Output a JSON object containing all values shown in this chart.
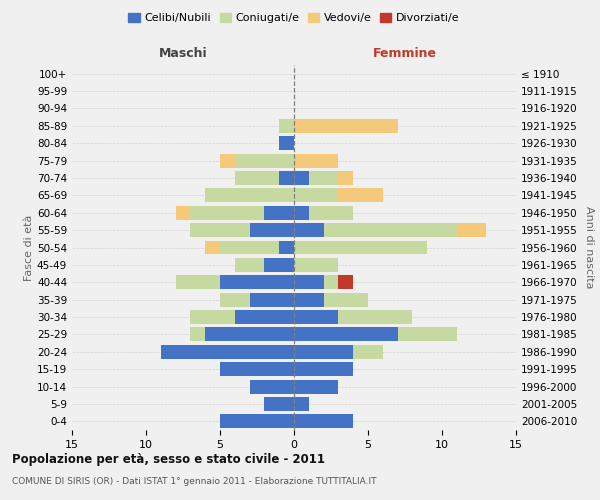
{
  "age_groups": [
    "0-4",
    "5-9",
    "10-14",
    "15-19",
    "20-24",
    "25-29",
    "30-34",
    "35-39",
    "40-44",
    "45-49",
    "50-54",
    "55-59",
    "60-64",
    "65-69",
    "70-74",
    "75-79",
    "80-84",
    "85-89",
    "90-94",
    "95-99",
    "100+"
  ],
  "birth_years": [
    "2006-2010",
    "2001-2005",
    "1996-2000",
    "1991-1995",
    "1986-1990",
    "1981-1985",
    "1976-1980",
    "1971-1975",
    "1966-1970",
    "1961-1965",
    "1956-1960",
    "1951-1955",
    "1946-1950",
    "1941-1945",
    "1936-1940",
    "1931-1935",
    "1926-1930",
    "1921-1925",
    "1916-1920",
    "1911-1915",
    "≤ 1910"
  ],
  "males": {
    "celibi": [
      5,
      2,
      3,
      5,
      9,
      6,
      4,
      3,
      5,
      2,
      1,
      3,
      2,
      0,
      1,
      0,
      1,
      0,
      0,
      0,
      0
    ],
    "coniugati": [
      0,
      0,
      0,
      0,
      0,
      1,
      3,
      2,
      3,
      2,
      4,
      4,
      5,
      6,
      3,
      4,
      0,
      1,
      0,
      0,
      0
    ],
    "vedovi": [
      0,
      0,
      0,
      0,
      0,
      0,
      0,
      0,
      0,
      0,
      1,
      0,
      1,
      0,
      0,
      1,
      0,
      0,
      0,
      0,
      0
    ],
    "divorziati": [
      0,
      0,
      0,
      0,
      0,
      0,
      0,
      0,
      0,
      0,
      0,
      0,
      0,
      0,
      0,
      0,
      0,
      0,
      0,
      0,
      0
    ]
  },
  "females": {
    "nubili": [
      4,
      1,
      3,
      4,
      4,
      7,
      3,
      2,
      2,
      0,
      0,
      2,
      1,
      0,
      1,
      0,
      0,
      0,
      0,
      0,
      0
    ],
    "coniugate": [
      0,
      0,
      0,
      0,
      2,
      4,
      5,
      3,
      1,
      3,
      9,
      9,
      3,
      3,
      2,
      0,
      0,
      0,
      0,
      0,
      0
    ],
    "vedove": [
      0,
      0,
      0,
      0,
      0,
      0,
      0,
      0,
      0,
      0,
      0,
      2,
      0,
      3,
      1,
      3,
      0,
      7,
      0,
      0,
      0
    ],
    "divorziate": [
      0,
      0,
      0,
      0,
      0,
      0,
      0,
      0,
      1,
      0,
      0,
      0,
      0,
      0,
      0,
      0,
      0,
      0,
      0,
      0,
      0
    ]
  },
  "colors": {
    "celibi": "#4472C4",
    "coniugati": "#C6D9A0",
    "vedovi": "#F5C97A",
    "divorziati": "#C0392B"
  },
  "xlim": 15,
  "title": "Popolazione per età, sesso e stato civile - 2011",
  "subtitle": "COMUNE DI SIRIS (OR) - Dati ISTAT 1° gennaio 2011 - Elaborazione TUTTITALIA.IT",
  "xlabel_left": "Maschi",
  "xlabel_right": "Femmine",
  "ylabel": "Fasce di età",
  "ylabel_right": "Anni di nascita",
  "legend_labels": [
    "Celibi/Nubili",
    "Coniugati/e",
    "Vedovi/e",
    "Divorziati/e"
  ],
  "bg_color": "#f0f0f0"
}
